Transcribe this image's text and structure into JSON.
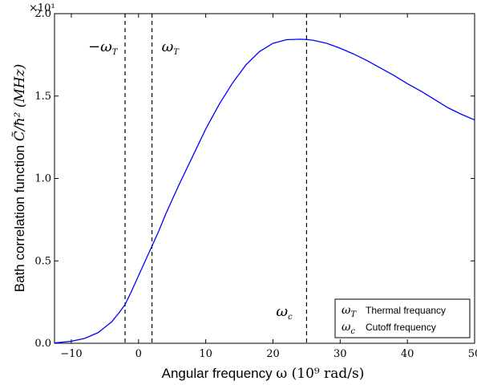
{
  "chart_data": {
    "type": "line",
    "x_label": "Angular frequency",
    "x_label_math": "ω (10⁹ rad/s)",
    "y_label": "Bath correlation function",
    "y_label_math": "C̃/ħ² (MHz)",
    "y_multiplier": "×10¹",
    "xlim": [
      -12.5,
      50
    ],
    "ylim": [
      0,
      2.0
    ],
    "x_ticks": [
      -10,
      0,
      10,
      20,
      30,
      40,
      50
    ],
    "y_ticks": [
      0.0,
      0.5,
      1.0,
      1.5,
      2.0
    ],
    "y_tick_labels": [
      "0.0",
      "0.5",
      "1.0",
      "1.5",
      "2.0"
    ],
    "series": [
      {
        "color": "#0000ff",
        "x": [
          -12.5,
          -10,
          -8,
          -6,
          -4,
          -3,
          -2,
          -1,
          0,
          1,
          2,
          3,
          4,
          6,
          8,
          10,
          12,
          14,
          16,
          18,
          20,
          22,
          24,
          25,
          26,
          28,
          30,
          32,
          34,
          36,
          38,
          40,
          42,
          44,
          46,
          48,
          50
        ],
        "y": [
          0.002,
          0.012,
          0.03,
          0.065,
          0.13,
          0.18,
          0.235,
          0.32,
          0.41,
          0.5,
          0.59,
          0.68,
          0.78,
          0.96,
          1.13,
          1.3,
          1.45,
          1.58,
          1.69,
          1.77,
          1.82,
          1.842,
          1.845,
          1.843,
          1.838,
          1.82,
          1.79,
          1.755,
          1.715,
          1.67,
          1.625,
          1.575,
          1.53,
          1.48,
          1.43,
          1.39,
          1.355
        ]
      }
    ],
    "vlines": [
      {
        "x": -2.0,
        "style": "dashed",
        "label": "−ω_T"
      },
      {
        "x": 2.0,
        "style": "dashed",
        "label": "ω_T"
      },
      {
        "x": 25.0,
        "style": "dashed",
        "label": "ω_c"
      }
    ],
    "legend": {
      "position": "lower-right",
      "entries": [
        {
          "symbol": "ω_T",
          "text": "Thermal frequancy"
        },
        {
          "symbol": "ω_c",
          "text": "Cutoff frequency"
        }
      ]
    },
    "grid": false
  }
}
